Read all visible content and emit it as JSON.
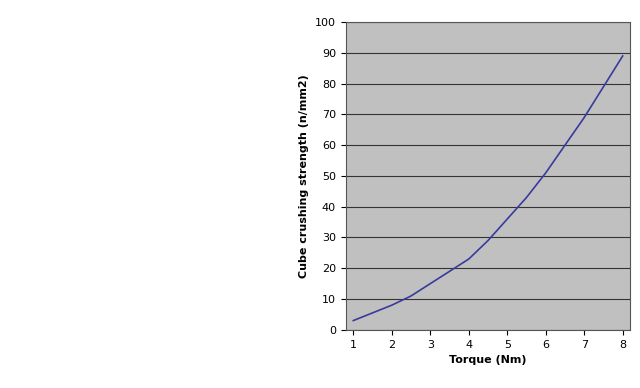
{
  "chart_data": {
    "type": "line",
    "x_label": "Torque (Nm)",
    "y_label": "Cube crushing strength (n/mm2)",
    "x": [
      1,
      1.5,
      2,
      2.5,
      3,
      3.5,
      4,
      4.5,
      5,
      5.5,
      6,
      6.5,
      7,
      7.5,
      8
    ],
    "values": [
      3,
      5.5,
      8,
      11,
      15,
      19,
      23,
      29,
      36,
      43,
      51,
      60,
      69,
      79,
      89
    ],
    "color": "#3a3a9e",
    "xlim": [
      0.8,
      8.2
    ],
    "xticks": [
      1,
      2,
      3,
      4,
      5,
      6,
      7,
      8
    ],
    "ylim": [
      0,
      100
    ],
    "yticks": [
      0,
      10,
      20,
      30,
      40,
      50,
      60,
      70,
      80,
      90,
      100
    ],
    "grid": true
  }
}
